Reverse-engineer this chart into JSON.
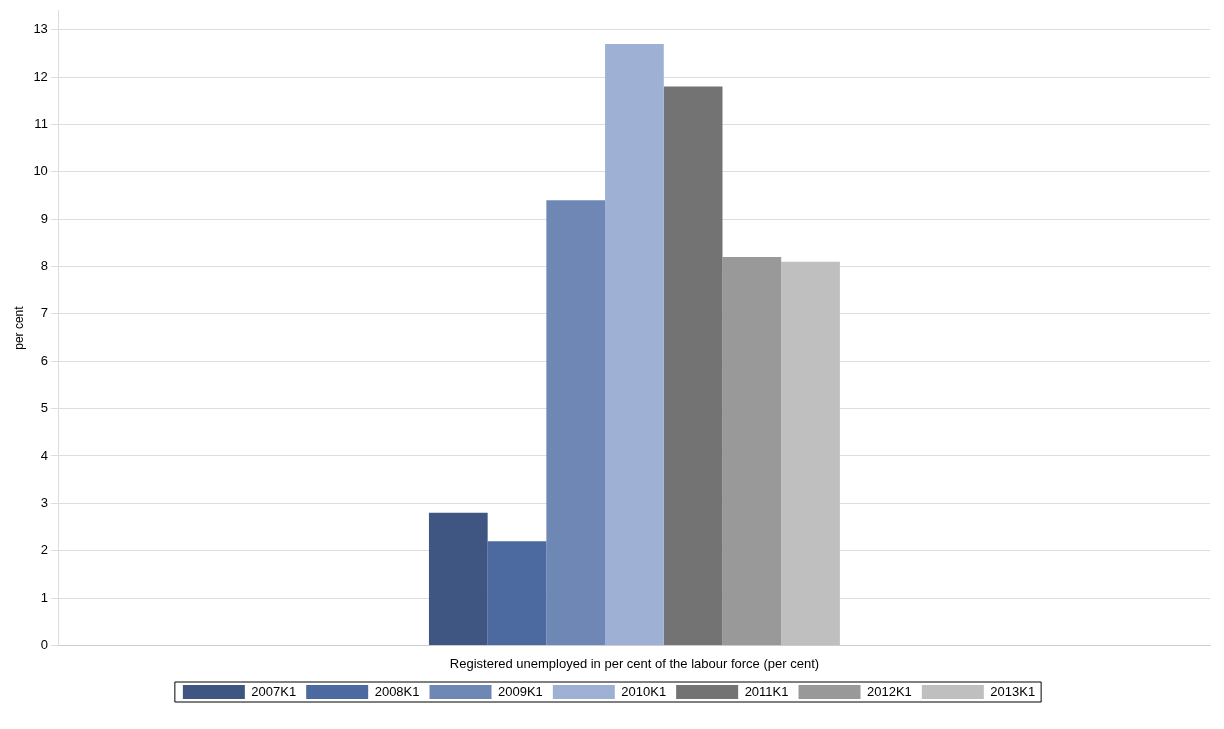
{
  "chart_data": {
    "type": "bar",
    "categories": [
      "Registered unemployed in per cent of the labour force (per cent)"
    ],
    "ylabel": "per cent",
    "series": [
      {
        "name": "2007K1",
        "color": "#3f5683",
        "values": [
          2.8
        ]
      },
      {
        "name": "2008K1",
        "color": "#4d6aa0",
        "values": [
          2.2
        ]
      },
      {
        "name": "2009K1",
        "color": "#6e87b5",
        "values": [
          9.4
        ]
      },
      {
        "name": "2010K1",
        "color": "#9eb0d4",
        "values": [
          12.7
        ]
      },
      {
        "name": "2011K1",
        "color": "#737373",
        "values": [
          11.8
        ]
      },
      {
        "name": "2012K1",
        "color": "#999999",
        "values": [
          8.2
        ]
      },
      {
        "name": "2013K1",
        "color": "#bfbfbf",
        "values": [
          8.1
        ]
      }
    ],
    "ylim": [
      0,
      13.4
    ],
    "yticks": [
      0,
      1,
      2,
      3,
      4,
      5,
      6,
      7,
      8,
      9,
      10,
      11,
      12,
      13
    ],
    "grid": "y",
    "legend": "bottom"
  }
}
